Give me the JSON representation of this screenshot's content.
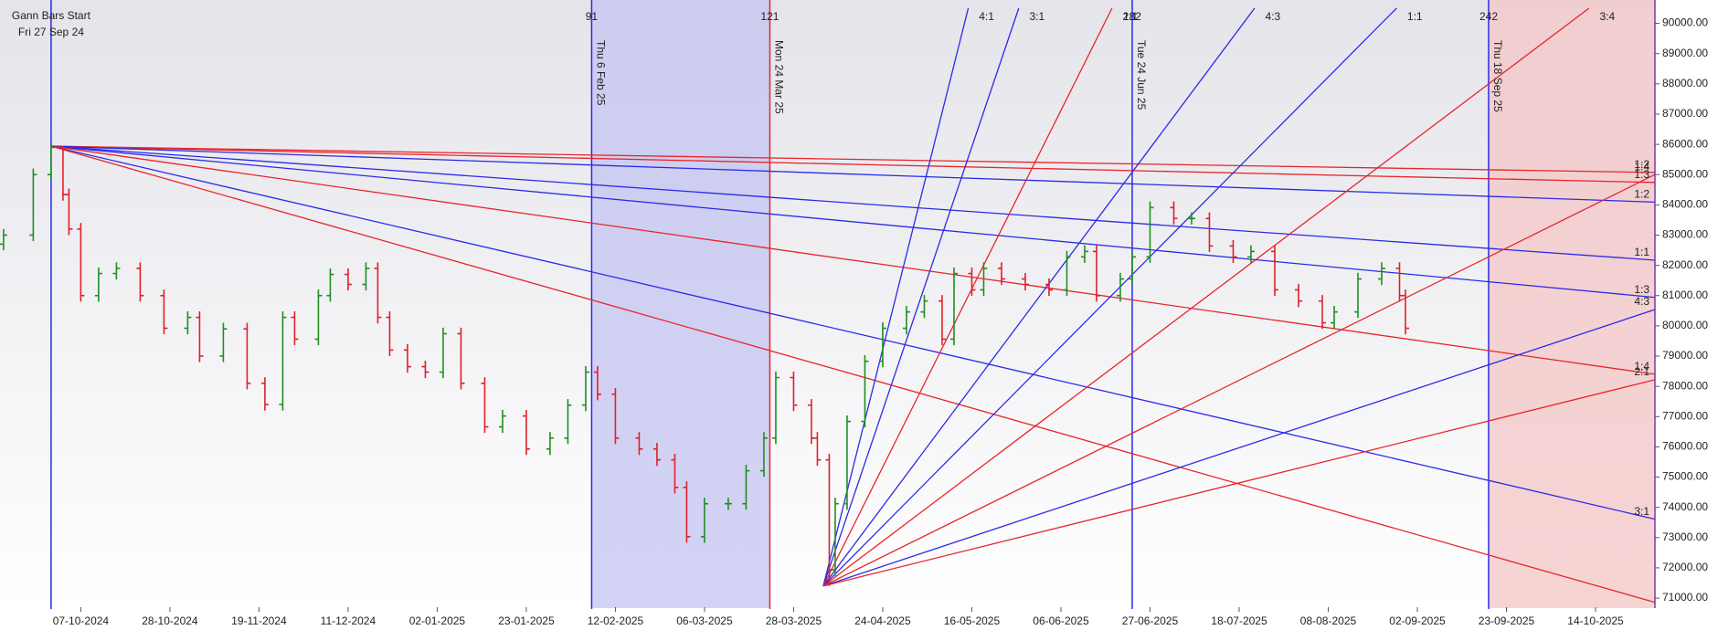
{
  "chart_data": {
    "type": "ohlc",
    "x": [
      -8,
      -3,
      0,
      2,
      3,
      5,
      8,
      11,
      15,
      19,
      23,
      25,
      29,
      33,
      36,
      39,
      41,
      45,
      47,
      50,
      53,
      55,
      57,
      60,
      63,
      66,
      69,
      73,
      76,
      80,
      84,
      87,
      90,
      92,
      95,
      99,
      102,
      105,
      107,
      110,
      114,
      117,
      120,
      122,
      125,
      128,
      129,
      131,
      132,
      134,
      137,
      140,
      144,
      147,
      150,
      152,
      155,
      157,
      160,
      164,
      168,
      171,
      174,
      176,
      180,
      182,
      185,
      189,
      192,
      195,
      199,
      202,
      206,
      210,
      214,
      216,
      220,
      224,
      227,
      228
    ],
    "open": [
      82700,
      83000,
      85000,
      85900,
      84340,
      83200,
      81000,
      81730,
      81900,
      81000,
      79920,
      80280,
      79000,
      79900,
      78100,
      77400,
      80280,
      79560,
      81000,
      81700,
      81370,
      81900,
      80280,
      79200,
      78650,
      78470,
      79740,
      78100,
      76660,
      77020,
      75930,
      76290,
      77380,
      78470,
      77740,
      76290,
      75930,
      75570,
      74660,
      73030,
      74120,
      74120,
      75210,
      76290,
      78290,
      77380,
      76290,
      75570,
      71940,
      74120,
      76840,
      78830,
      79920,
      80460,
      80820,
      79560,
      81730,
      81190,
      81900,
      81550,
      81370,
      81190,
      82280,
      82460,
      81000,
      81550,
      82280,
      83910,
      83550,
      83550,
      82640,
      82280,
      82460,
      81190,
      80820,
      80100,
      80460,
      81550,
      81900,
      81000
    ],
    "high": [
      83200,
      85200,
      85950,
      85950,
      84540,
      83400,
      81930,
      82100,
      82100,
      81200,
      80480,
      80480,
      80100,
      80100,
      78300,
      80480,
      80480,
      81200,
      81900,
      81900,
      82100,
      82100,
      80480,
      79400,
      78850,
      79940,
      79940,
      78300,
      77220,
      77220,
      76490,
      77580,
      78670,
      78670,
      77940,
      76490,
      76130,
      75770,
      74860,
      74320,
      74320,
      75410,
      76490,
      78490,
      78490,
      77580,
      76490,
      75770,
      74320,
      77040,
      79030,
      80120,
      80660,
      81020,
      81020,
      81930,
      81930,
      82100,
      82100,
      81750,
      81570,
      82480,
      82660,
      82660,
      81750,
      82480,
      84110,
      84110,
      83750,
      83750,
      82840,
      82660,
      82660,
      81390,
      81020,
      80660,
      81750,
      82100,
      82100,
      81200
    ],
    "low": [
      82500,
      82800,
      84800,
      84140,
      83000,
      80800,
      80800,
      81530,
      80800,
      79720,
      79720,
      78800,
      78800,
      77900,
      77200,
      77200,
      79360,
      79360,
      80800,
      81170,
      81170,
      80080,
      79000,
      78450,
      78270,
      78270,
      77900,
      76460,
      76460,
      75730,
      75730,
      76090,
      77180,
      77540,
      76090,
      75730,
      75370,
      74460,
      72830,
      72830,
      73920,
      73920,
      75010,
      76090,
      77180,
      76090,
      75370,
      71400,
      71740,
      73920,
      76640,
      78630,
      79720,
      80260,
      79360,
      79360,
      80990,
      80990,
      81350,
      81170,
      80990,
      80990,
      82080,
      80800,
      80800,
      81350,
      82080,
      83350,
      83350,
      82440,
      82080,
      82080,
      80990,
      80620,
      79900,
      79900,
      80260,
      81350,
      80800,
      79720
    ],
    "close": [
      83000,
      85000,
      85900,
      84340,
      83200,
      81000,
      81730,
      81900,
      81000,
      79920,
      80280,
      79000,
      79900,
      78100,
      77400,
      80280,
      79560,
      81000,
      81700,
      81370,
      81900,
      80280,
      79200,
      78650,
      78470,
      79740,
      78100,
      76660,
      77020,
      75930,
      76290,
      77380,
      78470,
      77740,
      76290,
      75930,
      75570,
      74660,
      73030,
      74120,
      74120,
      75210,
      76290,
      78290,
      77380,
      76290,
      75570,
      71940,
      74120,
      76840,
      78830,
      79920,
      80460,
      80820,
      79560,
      81730,
      81190,
      81900,
      81550,
      81370,
      81190,
      82280,
      82460,
      81000,
      81550,
      82280,
      83910,
      83550,
      83550,
      82640,
      82280,
      82460,
      81190,
      80820,
      80100,
      80460,
      81550,
      81900,
      81000,
      79920
    ],
    "up_color": "#1f8f1f",
    "down_color": "#e0202a",
    "xlim": [
      -8.6,
      270
    ],
    "ylim": [
      70700,
      90500
    ],
    "xticks": [
      {
        "value": 5,
        "label": "07-10-2024"
      },
      {
        "value": 20,
        "label": "28-10-2024"
      },
      {
        "value": 35,
        "label": "19-11-2024"
      },
      {
        "value": 50,
        "label": "11-12-2024"
      },
      {
        "value": 65,
        "label": "02-01-2025"
      },
      {
        "value": 80,
        "label": "23-01-2025"
      },
      {
        "value": 95,
        "label": "12-02-2025"
      },
      {
        "value": 110,
        "label": "06-03-2025"
      },
      {
        "value": 125,
        "label": "28-03-2025"
      },
      {
        "value": 140,
        "label": "24-04-2025"
      },
      {
        "value": 155,
        "label": "16-05-2025"
      },
      {
        "value": 170,
        "label": "06-06-2025"
      },
      {
        "value": 185,
        "label": "27-06-2025"
      },
      {
        "value": 200,
        "label": "18-07-2025"
      },
      {
        "value": 215,
        "label": "08-08-2025"
      },
      {
        "value": 230,
        "label": "02-09-2025"
      },
      {
        "value": 245,
        "label": "23-09-2025"
      },
      {
        "value": 260,
        "label": "14-10-2025"
      }
    ],
    "yticks": [
      {
        "value": 71000,
        "label": "71000.00"
      },
      {
        "value": 72000,
        "label": "72000.00"
      },
      {
        "value": 73000,
        "label": "73000.00"
      },
      {
        "value": 74000,
        "label": "74000.00"
      },
      {
        "value": 75000,
        "label": "75000.00"
      },
      {
        "value": 76000,
        "label": "76000.00"
      },
      {
        "value": 77000,
        "label": "77000.00"
      },
      {
        "value": 78000,
        "label": "78000.00"
      },
      {
        "value": 79000,
        "label": "79000.00"
      },
      {
        "value": 80000,
        "label": "80000.00"
      },
      {
        "value": 81000,
        "label": "81000.00"
      },
      {
        "value": 82000,
        "label": "82000.00"
      },
      {
        "value": 83000,
        "label": "83000.00"
      },
      {
        "value": 84000,
        "label": "84000.00"
      },
      {
        "value": 85000,
        "label": "85000.00"
      },
      {
        "value": 86000,
        "label": "86000.00"
      },
      {
        "value": 87000,
        "label": "87000.00"
      },
      {
        "value": 88000,
        "label": "88000.00"
      },
      {
        "value": 89000,
        "label": "89000.00"
      },
      {
        "value": 90000,
        "label": "90000.00"
      }
    ],
    "start": {
      "x": 0,
      "title": "Gann Bars Start",
      "date": "Fri 27 Sep 24",
      "color": "#2a2ae8"
    },
    "markers": [
      {
        "x": 91,
        "label": "91",
        "date": "Thu 6 Feb 25",
        "color": "#2a2ae8"
      },
      {
        "x": 121,
        "label": "121",
        "date": "Mon 24 Mar 25",
        "color": "#e8252a"
      },
      {
        "x": 182,
        "label": "182",
        "date": "Tue 24 Jun 25",
        "color": "#2a2ae8"
      },
      {
        "x": 242,
        "label": "242",
        "date": "Thu 18 Sep 25",
        "color": "#2a2ae8"
      }
    ],
    "shaded": [
      {
        "from": 91,
        "to": 121,
        "color": "#c4c4f2"
      },
      {
        "from": 242,
        "to": 270,
        "color": "#f4c6c6"
      }
    ],
    "fans": [
      {
        "origin": [
          0,
          85940
        ],
        "lines": [
          {
            "end": [
              270,
              85070
            ],
            "color": "#e8252a",
            "label": "1:2"
          },
          {
            "end": [
              270,
              84740
            ],
            "color": "#e8252a",
            "label": "1:3"
          },
          {
            "end": [
              270,
              84090
            ],
            "color": "#2a2ae8",
            "label": "1:2"
          },
          {
            "end": [
              270,
              82170
            ],
            "color": "#2a2ae8",
            "label": "1:1"
          },
          {
            "end": [
              270,
              80940
            ],
            "color": "#2a2ae8",
            "label": "1:3"
          },
          {
            "end": [
              270,
              78400
            ],
            "color": "#e8252a",
            "label": "1:4"
          },
          {
            "end": [
              270,
              73610
            ],
            "color": "#2a2ae8",
            "label": "3:1"
          },
          {
            "end": [
              270,
              70860
            ],
            "color": "#e8252a"
          }
        ]
      },
      {
        "origin": [
          130,
          71400
        ],
        "lines": [
          {
            "end": [
              154.4,
              90500
            ],
            "color": "#2a2ae8",
            "label": "4:1"
          },
          {
            "end": [
              162.9,
              90500
            ],
            "color": "#2a2ae8",
            "label": "3:1"
          },
          {
            "end": [
              178.6,
              90500
            ],
            "color": "#e8252a",
            "label": "2:1"
          },
          {
            "end": [
              202.6,
              90500
            ],
            "color": "#2a2ae8",
            "label": "4:3"
          },
          {
            "end": [
              226.5,
              90500
            ],
            "color": "#2a2ae8",
            "label": "1:1"
          },
          {
            "end": [
              258.9,
              90500
            ],
            "color": "#e8252a",
            "label": "3:4"
          },
          {
            "end": [
              270,
              85000
            ],
            "color": "#e8252a",
            "label": "1:4"
          },
          {
            "end": [
              270,
              80540
            ],
            "color": "#2a2ae8",
            "label": "4:3"
          },
          {
            "end": [
              270,
              78220
            ],
            "color": "#e8252a",
            "label": "2:1"
          }
        ]
      }
    ]
  }
}
